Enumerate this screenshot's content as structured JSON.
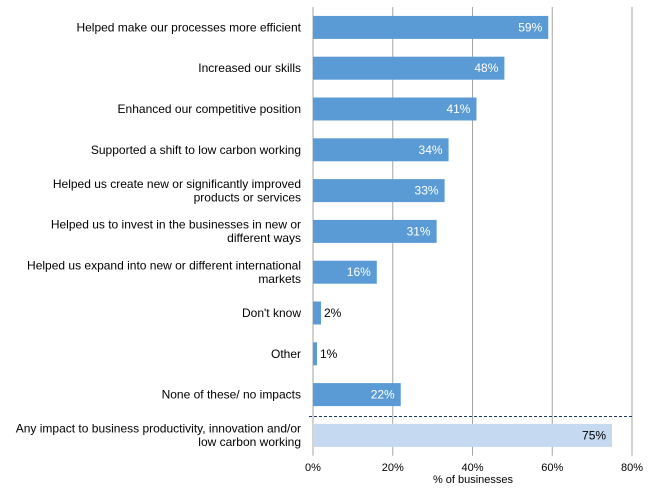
{
  "chart_data": {
    "type": "bar",
    "orientation": "horizontal",
    "xlabel": "% of businesses",
    "xlim": [
      0,
      80
    ],
    "x_ticks": [
      "0%",
      "20%",
      "40%",
      "60%",
      "80%"
    ],
    "grid": true,
    "categories": [
      [
        "Helped make our processes more efficient"
      ],
      [
        "Increased our skills"
      ],
      [
        "Enhanced our competitive position"
      ],
      [
        "Supported a shift to low carbon working"
      ],
      [
        "Helped us create new or significantly improved",
        "products or services"
      ],
      [
        "Helped us to invest in the businesses in new or",
        "different ways"
      ],
      [
        "Helped us expand into new or different international",
        "markets"
      ],
      [
        "Don't know"
      ],
      [
        "Other"
      ],
      [
        "None of these/ no impacts"
      ]
    ],
    "values": [
      59,
      48,
      41,
      34,
      33,
      31,
      16,
      2,
      1,
      22
    ],
    "value_labels": [
      "59%",
      "48%",
      "41%",
      "34%",
      "33%",
      "31%",
      "16%",
      "2%",
      "1%",
      "22%"
    ],
    "summary": {
      "category": [
        "Any impact to business productivity, innovation and/or",
        "low carbon working"
      ],
      "value": 75,
      "value_label": "75%"
    },
    "colors": {
      "bar": "#5b9bd5",
      "summary_bar": "#c5d9f1",
      "grid": "#a6a6a6",
      "divider": "#1f3864"
    }
  }
}
